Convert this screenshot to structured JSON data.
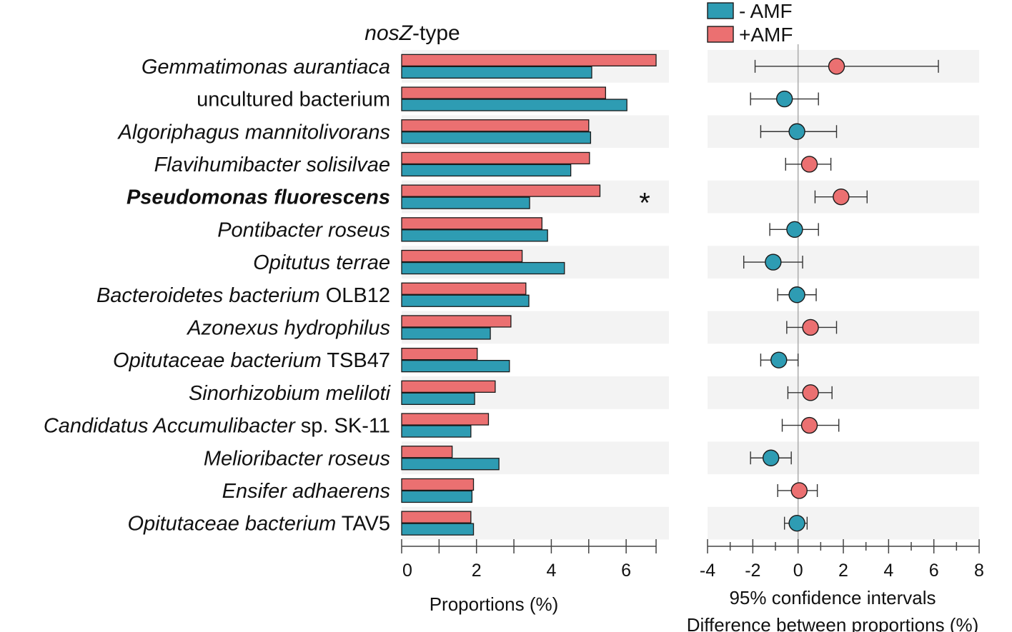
{
  "colors": {
    "minus_amf": "#2e9cb3",
    "plus_amf": "#eb7071",
    "band": "#f3f3f3",
    "axis": "#444444",
    "zero_line": "#aaaaaa"
  },
  "chart_data": {
    "type": "bar",
    "title_italic": "nosZ",
    "title_rest": "-type",
    "categories": [
      {
        "italic": "Gemmatimonas aurantiaca",
        "plain": "",
        "bold": false
      },
      {
        "italic": "",
        "plain": "uncultured bacterium",
        "bold": false
      },
      {
        "italic": "Algoriphagus mannitolivorans",
        "plain": "",
        "bold": false
      },
      {
        "italic": "Flavihumibacter solisilvae",
        "plain": "",
        "bold": false
      },
      {
        "italic": "Pseudomonas fluorescens",
        "plain": "",
        "bold": true
      },
      {
        "italic": "Pontibacter roseus",
        "plain": "",
        "bold": false
      },
      {
        "italic": "Opitutus terrae",
        "plain": "",
        "bold": false
      },
      {
        "italic": "Bacteroidetes bacterium",
        "plain": " OLB12",
        "bold": false
      },
      {
        "italic": "Azonexus hydrophilus",
        "plain": "",
        "bold": false
      },
      {
        "italic": "Opitutaceae bacterium",
        "plain": " TSB47",
        "bold": false
      },
      {
        "italic": "Sinorhizobium meliloti",
        "plain": "",
        "bold": false
      },
      {
        "italic": "Candidatus Accumulibacter",
        "plain": " sp. SK-11",
        "bold": false
      },
      {
        "italic": "Melioribacter roseus",
        "plain": "",
        "bold": false
      },
      {
        "italic": "Ensifer adhaerens",
        "plain": "",
        "bold": false
      },
      {
        "italic": "Opitutaceae bacterium",
        "plain": " TAV5",
        "bold": false
      }
    ],
    "series": [
      {
        "name": "+AMF",
        "key": "plus_amf",
        "values": [
          6.8,
          5.45,
          5.0,
          5.02,
          5.3,
          3.75,
          3.22,
          3.32,
          2.92,
          2.02,
          2.5,
          2.32,
          1.35,
          1.92,
          1.85
        ]
      },
      {
        "name": "- AMF",
        "key": "minus_amf",
        "values": [
          5.08,
          6.02,
          5.05,
          4.52,
          3.42,
          3.9,
          4.35,
          3.4,
          2.37,
          2.88,
          1.95,
          1.85,
          2.6,
          1.88,
          1.92
        ]
      }
    ],
    "significance_marker": {
      "row": 4,
      "symbol": "*"
    },
    "bar_axis": {
      "label": "Proportions (%)",
      "xlim": [
        0,
        6.8
      ],
      "ticks": [
        0,
        2,
        4,
        6
      ],
      "minor_step": 1
    },
    "ci": {
      "diff": [
        1.7,
        -0.6,
        -0.05,
        0.5,
        1.9,
        -0.15,
        -1.1,
        -0.05,
        0.55,
        -0.85,
        0.55,
        0.5,
        -1.2,
        0.05,
        -0.05
      ],
      "lower": [
        -1.9,
        -2.1,
        -1.65,
        -0.55,
        0.75,
        -1.25,
        -2.4,
        -0.9,
        -0.5,
        -1.65,
        -0.45,
        -0.7,
        -2.1,
        -0.9,
        -0.6
      ],
      "upper": [
        6.2,
        0.9,
        1.7,
        1.45,
        3.05,
        0.9,
        0.2,
        0.8,
        1.7,
        0.0,
        1.5,
        1.8,
        -0.3,
        0.85,
        0.4
      ],
      "group": [
        "plus_amf",
        "minus_amf",
        "minus_amf",
        "plus_amf",
        "plus_amf",
        "minus_amf",
        "minus_amf",
        "minus_amf",
        "plus_amf",
        "minus_amf",
        "plus_amf",
        "plus_amf",
        "minus_amf",
        "plus_amf",
        "minus_amf"
      ],
      "xlim": [
        -4,
        8
      ],
      "ticks": [
        -4,
        -2,
        0,
        2,
        4,
        6,
        8
      ],
      "label_line1": "95% confidence intervals",
      "label_line2": "Difference between proportions (%)"
    },
    "legend": [
      {
        "label": "- AMF",
        "key": "minus_amf"
      },
      {
        "label": "+AMF",
        "key": "plus_amf"
      }
    ]
  }
}
